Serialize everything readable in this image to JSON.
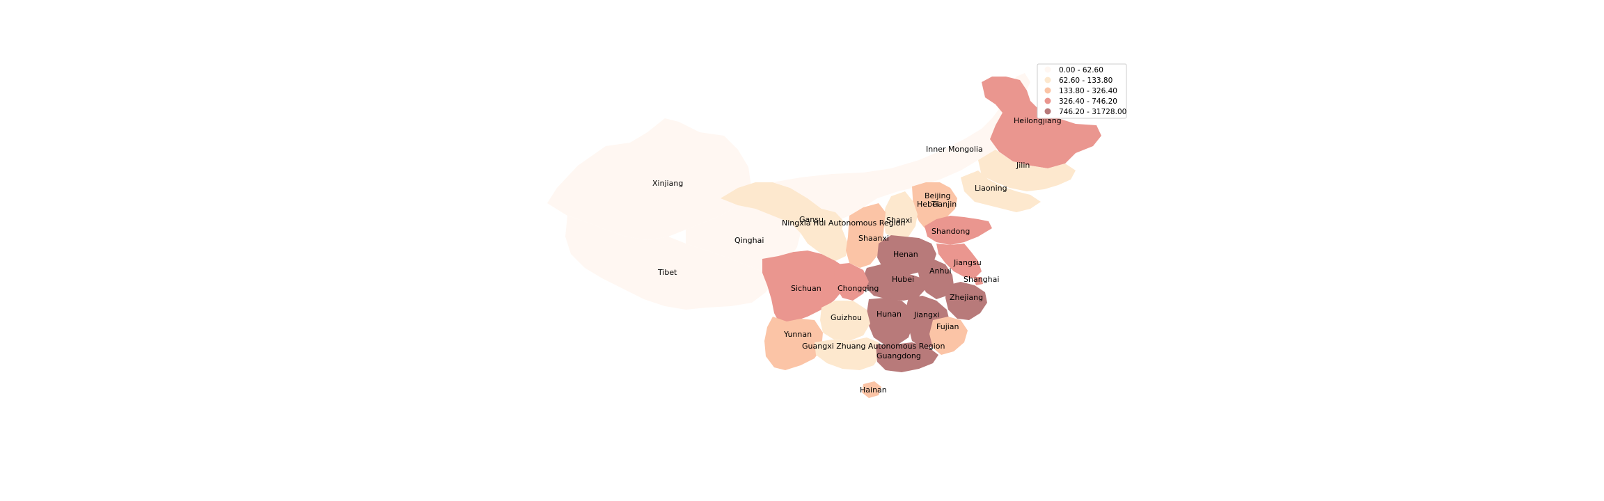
{
  "legend": {
    "bins": [
      {
        "label": "0.00 - 62.60",
        "color": "#fff7f2"
      },
      {
        "label": "62.60 - 133.80",
        "color": "#fde8ce"
      },
      {
        "label": "133.80 - 326.40",
        "color": "#fbc4a6"
      },
      {
        "label": "326.40 - 746.20",
        "color": "#ea968f"
      },
      {
        "label": "746.20 - 31728.00",
        "color": "#b87a7a"
      }
    ]
  },
  "provinces": [
    {
      "name": "Xinjiang",
      "bin": 0
    },
    {
      "name": "Tibet",
      "bin": 0
    },
    {
      "name": "Qinghai",
      "bin": 0
    },
    {
      "name": "Gansu",
      "bin": 1
    },
    {
      "name": "Inner Mongolia",
      "bin": 0
    },
    {
      "name": "Heilongjiang",
      "bin": 3
    },
    {
      "name": "Jilin",
      "bin": 1
    },
    {
      "name": "Liaoning",
      "bin": 1
    },
    {
      "name": "Beijing",
      "bin": 2
    },
    {
      "name": "Tianjin",
      "bin": 2
    },
    {
      "name": "Hebei",
      "bin": 2
    },
    {
      "name": "Shanxi",
      "bin": 1
    },
    {
      "name": "Ningxia Hui Autonomous Region",
      "bin": 1
    },
    {
      "name": "Shaanxi",
      "bin": 2
    },
    {
      "name": "Shandong",
      "bin": 3
    },
    {
      "name": "Henan",
      "bin": 4
    },
    {
      "name": "Jiangsu",
      "bin": 3
    },
    {
      "name": "Anhui",
      "bin": 4
    },
    {
      "name": "Shanghai",
      "bin": 3
    },
    {
      "name": "Hubei",
      "bin": 4
    },
    {
      "name": "Zhejiang",
      "bin": 4
    },
    {
      "name": "Sichuan",
      "bin": 3
    },
    {
      "name": "Chongqing",
      "bin": 3
    },
    {
      "name": "Hunan",
      "bin": 4
    },
    {
      "name": "Jiangxi",
      "bin": 4
    },
    {
      "name": "Guizhou",
      "bin": 1
    },
    {
      "name": "Fujian",
      "bin": 2
    },
    {
      "name": "Yunnan",
      "bin": 2
    },
    {
      "name": "Guangxi Zhuang Autonomous Region",
      "bin": 1
    },
    {
      "name": "Guangdong",
      "bin": 4
    },
    {
      "name": "Hainan",
      "bin": 2
    }
  ]
}
